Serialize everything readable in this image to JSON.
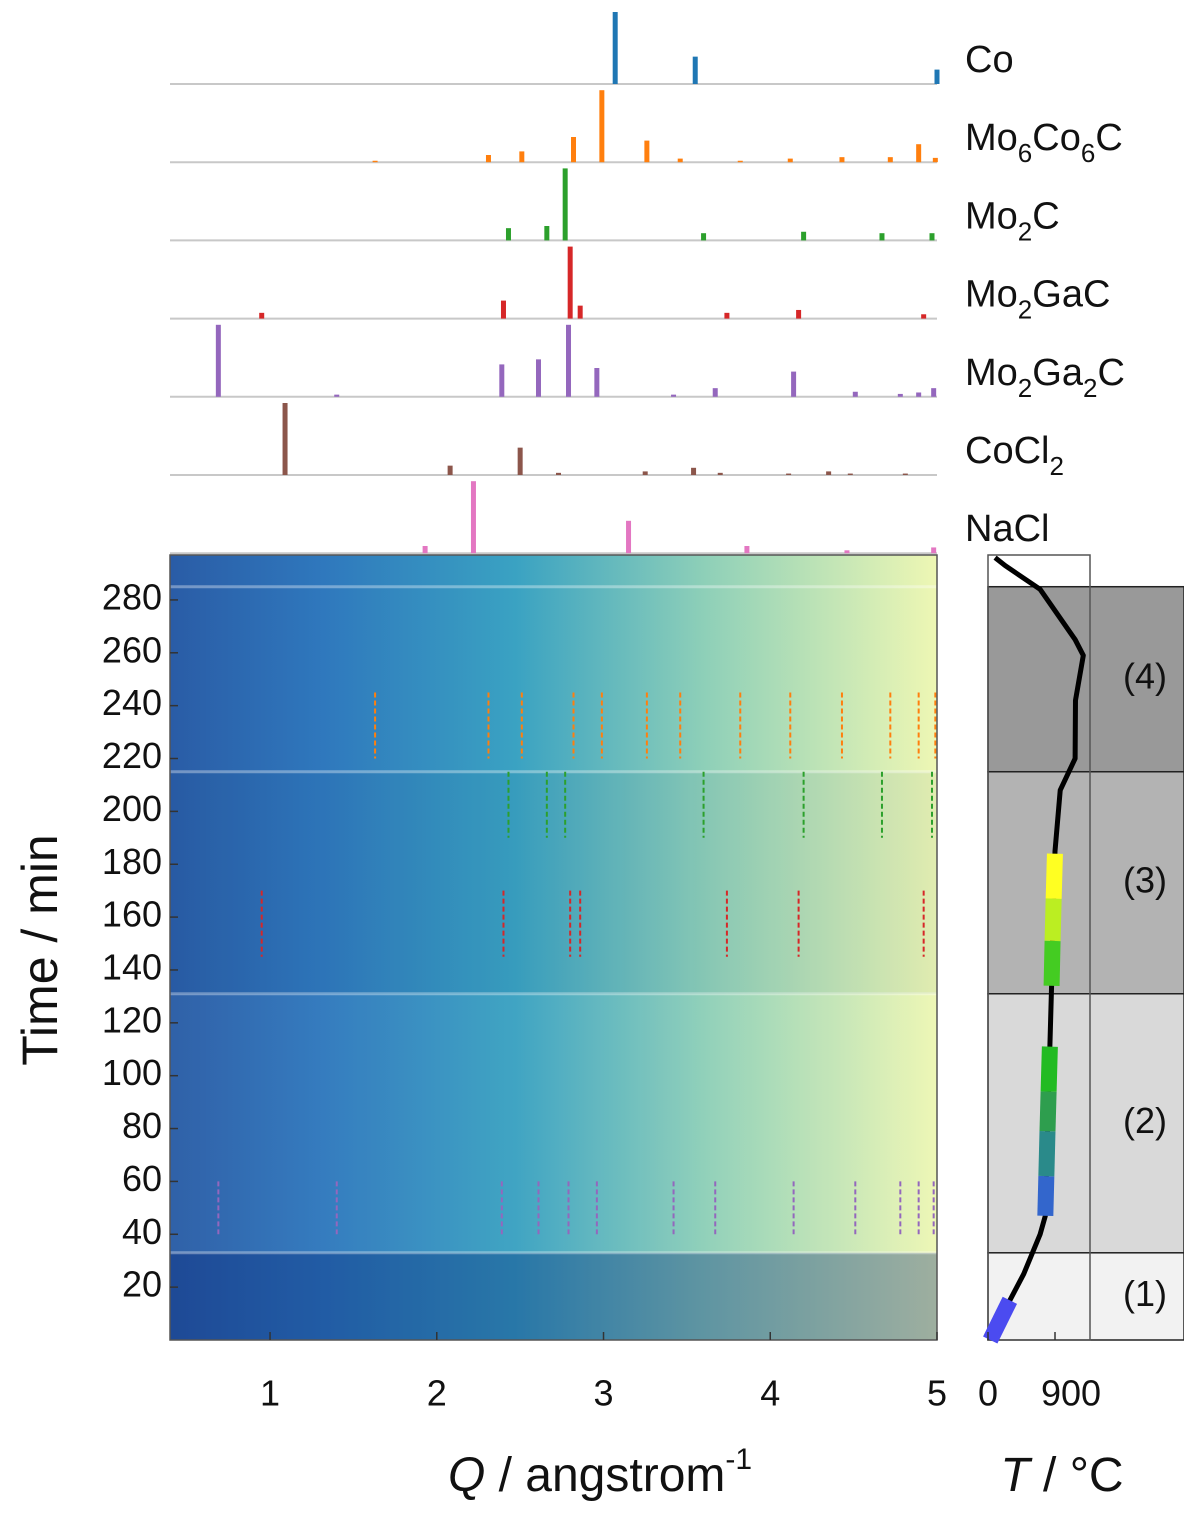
{
  "chart_data": [
    {
      "type": "sticks",
      "xlim": [
        0.4,
        5
      ],
      "series": [
        {
          "name": "Co",
          "color": "#1f77b4",
          "q": [
            3.07,
            3.55,
            5.0
          ],
          "intensity": [
            1.0,
            0.38,
            0.2
          ]
        },
        {
          "name": "Mo6Co6C",
          "color": "#ff7f0e",
          "marker_time": [
            220,
            245
          ],
          "q": [
            1.63,
            2.31,
            2.51,
            2.82,
            2.99,
            3.26,
            3.46,
            3.82,
            4.12,
            4.43,
            4.72,
            4.89,
            4.99
          ],
          "intensity": [
            0.02,
            0.1,
            0.15,
            0.35,
            1.0,
            0.3,
            0.05,
            0.02,
            0.05,
            0.07,
            0.07,
            0.25,
            0.06
          ]
        },
        {
          "name": "Mo2C",
          "color": "#2ca02c",
          "marker_time": [
            190,
            215
          ],
          "q": [
            2.43,
            2.66,
            2.77,
            3.6,
            4.2,
            4.67,
            4.97
          ],
          "intensity": [
            0.17,
            0.2,
            1.0,
            0.1,
            0.12,
            0.1,
            0.1
          ]
        },
        {
          "name": "Mo2GaC",
          "color": "#d62728",
          "marker_time": [
            145,
            170
          ],
          "q": [
            0.95,
            2.4,
            2.8,
            2.86,
            3.74,
            4.17,
            4.92
          ],
          "intensity": [
            0.08,
            0.25,
            1.0,
            0.18,
            0.08,
            0.12,
            0.06
          ]
        },
        {
          "name": "Mo2Ga2C",
          "color": "#9467bd",
          "marker_time": [
            40,
            60
          ],
          "q": [
            0.69,
            1.4,
            2.39,
            2.61,
            2.79,
            2.96,
            3.42,
            3.67,
            4.14,
            4.51,
            4.78,
            4.89,
            4.98
          ],
          "intensity": [
            1.0,
            0.03,
            0.45,
            0.52,
            1.0,
            0.4,
            0.03,
            0.12,
            0.35,
            0.07,
            0.04,
            0.06,
            0.12
          ]
        },
        {
          "name": "CoCl2",
          "color": "#8c564b",
          "q": [
            1.09,
            2.08,
            2.5,
            2.73,
            3.25,
            3.54,
            3.7,
            4.11,
            4.35,
            4.48,
            4.81
          ],
          "intensity": [
            1.0,
            0.13,
            0.38,
            0.03,
            0.05,
            0.1,
            0.03,
            0.02,
            0.05,
            0.02,
            0.02
          ]
        },
        {
          "name": "NaCl",
          "color": "#e377c2",
          "q": [
            1.93,
            2.22,
            3.15,
            3.86,
            4.46,
            4.98
          ],
          "intensity": [
            0.1,
            1.0,
            0.45,
            0.1,
            0.04,
            0.08
          ]
        }
      ]
    },
    {
      "type": "heatmap",
      "xlabel": {
        "symbol": "Q",
        "text": " / angstrom",
        "sup": "-1"
      },
      "xlim": [
        0.4,
        5
      ],
      "xticks": [
        1,
        2,
        3,
        4,
        5
      ],
      "ylabel": "Time / min",
      "ylim": [
        0,
        297
      ],
      "yticks": [
        20,
        40,
        60,
        80,
        100,
        120,
        140,
        160,
        180,
        200,
        220,
        240,
        260,
        280
      ]
    },
    {
      "type": "line",
      "xlabel": {
        "symbol": "T",
        "text": " / °C"
      },
      "xlim": [
        0,
        1370
      ],
      "xticks": [
        0,
        900
      ],
      "ylim": [
        0,
        297
      ],
      "color": "#000000",
      "time": [
        0,
        10,
        25,
        40,
        47,
        80,
        140,
        155,
        185,
        208,
        220,
        242,
        259,
        265,
        284,
        293,
        296
      ],
      "temperature": [
        30,
        200,
        480,
        700,
        770,
        800,
        860,
        870,
        900,
        970,
        1170,
        1175,
        1280,
        1170,
        700,
        230,
        95
      ],
      "stages": [
        {
          "label": "(1)",
          "time": [
            0,
            33
          ],
          "color": "#f2f2f2"
        },
        {
          "label": "(2)",
          "time": [
            33,
            131
          ],
          "color": "#d9d9d9"
        },
        {
          "label": "(3)",
          "time": [
            131,
            215
          ],
          "color": "#b3b3b3"
        },
        {
          "label": "(4)",
          "time": [
            215,
            285
          ],
          "color": "#999999"
        }
      ],
      "highlights": [
        {
          "time": [
            0,
            15
          ],
          "color": "#4b4bf0"
        },
        {
          "time": [
            47,
            62
          ],
          "color": "#3366cc"
        },
        {
          "time": [
            62,
            79
          ],
          "color": "#2a8a8a"
        },
        {
          "time": [
            79,
            94
          ],
          "color": "#2e9e4e"
        },
        {
          "time": [
            94,
            111
          ],
          "color": "#22bb22"
        },
        {
          "time": [
            134,
            151
          ],
          "color": "#44cc22"
        },
        {
          "time": [
            151,
            167
          ],
          "color": "#bbee22"
        },
        {
          "time": [
            167,
            184
          ],
          "color": "#ffff22"
        }
      ]
    }
  ]
}
